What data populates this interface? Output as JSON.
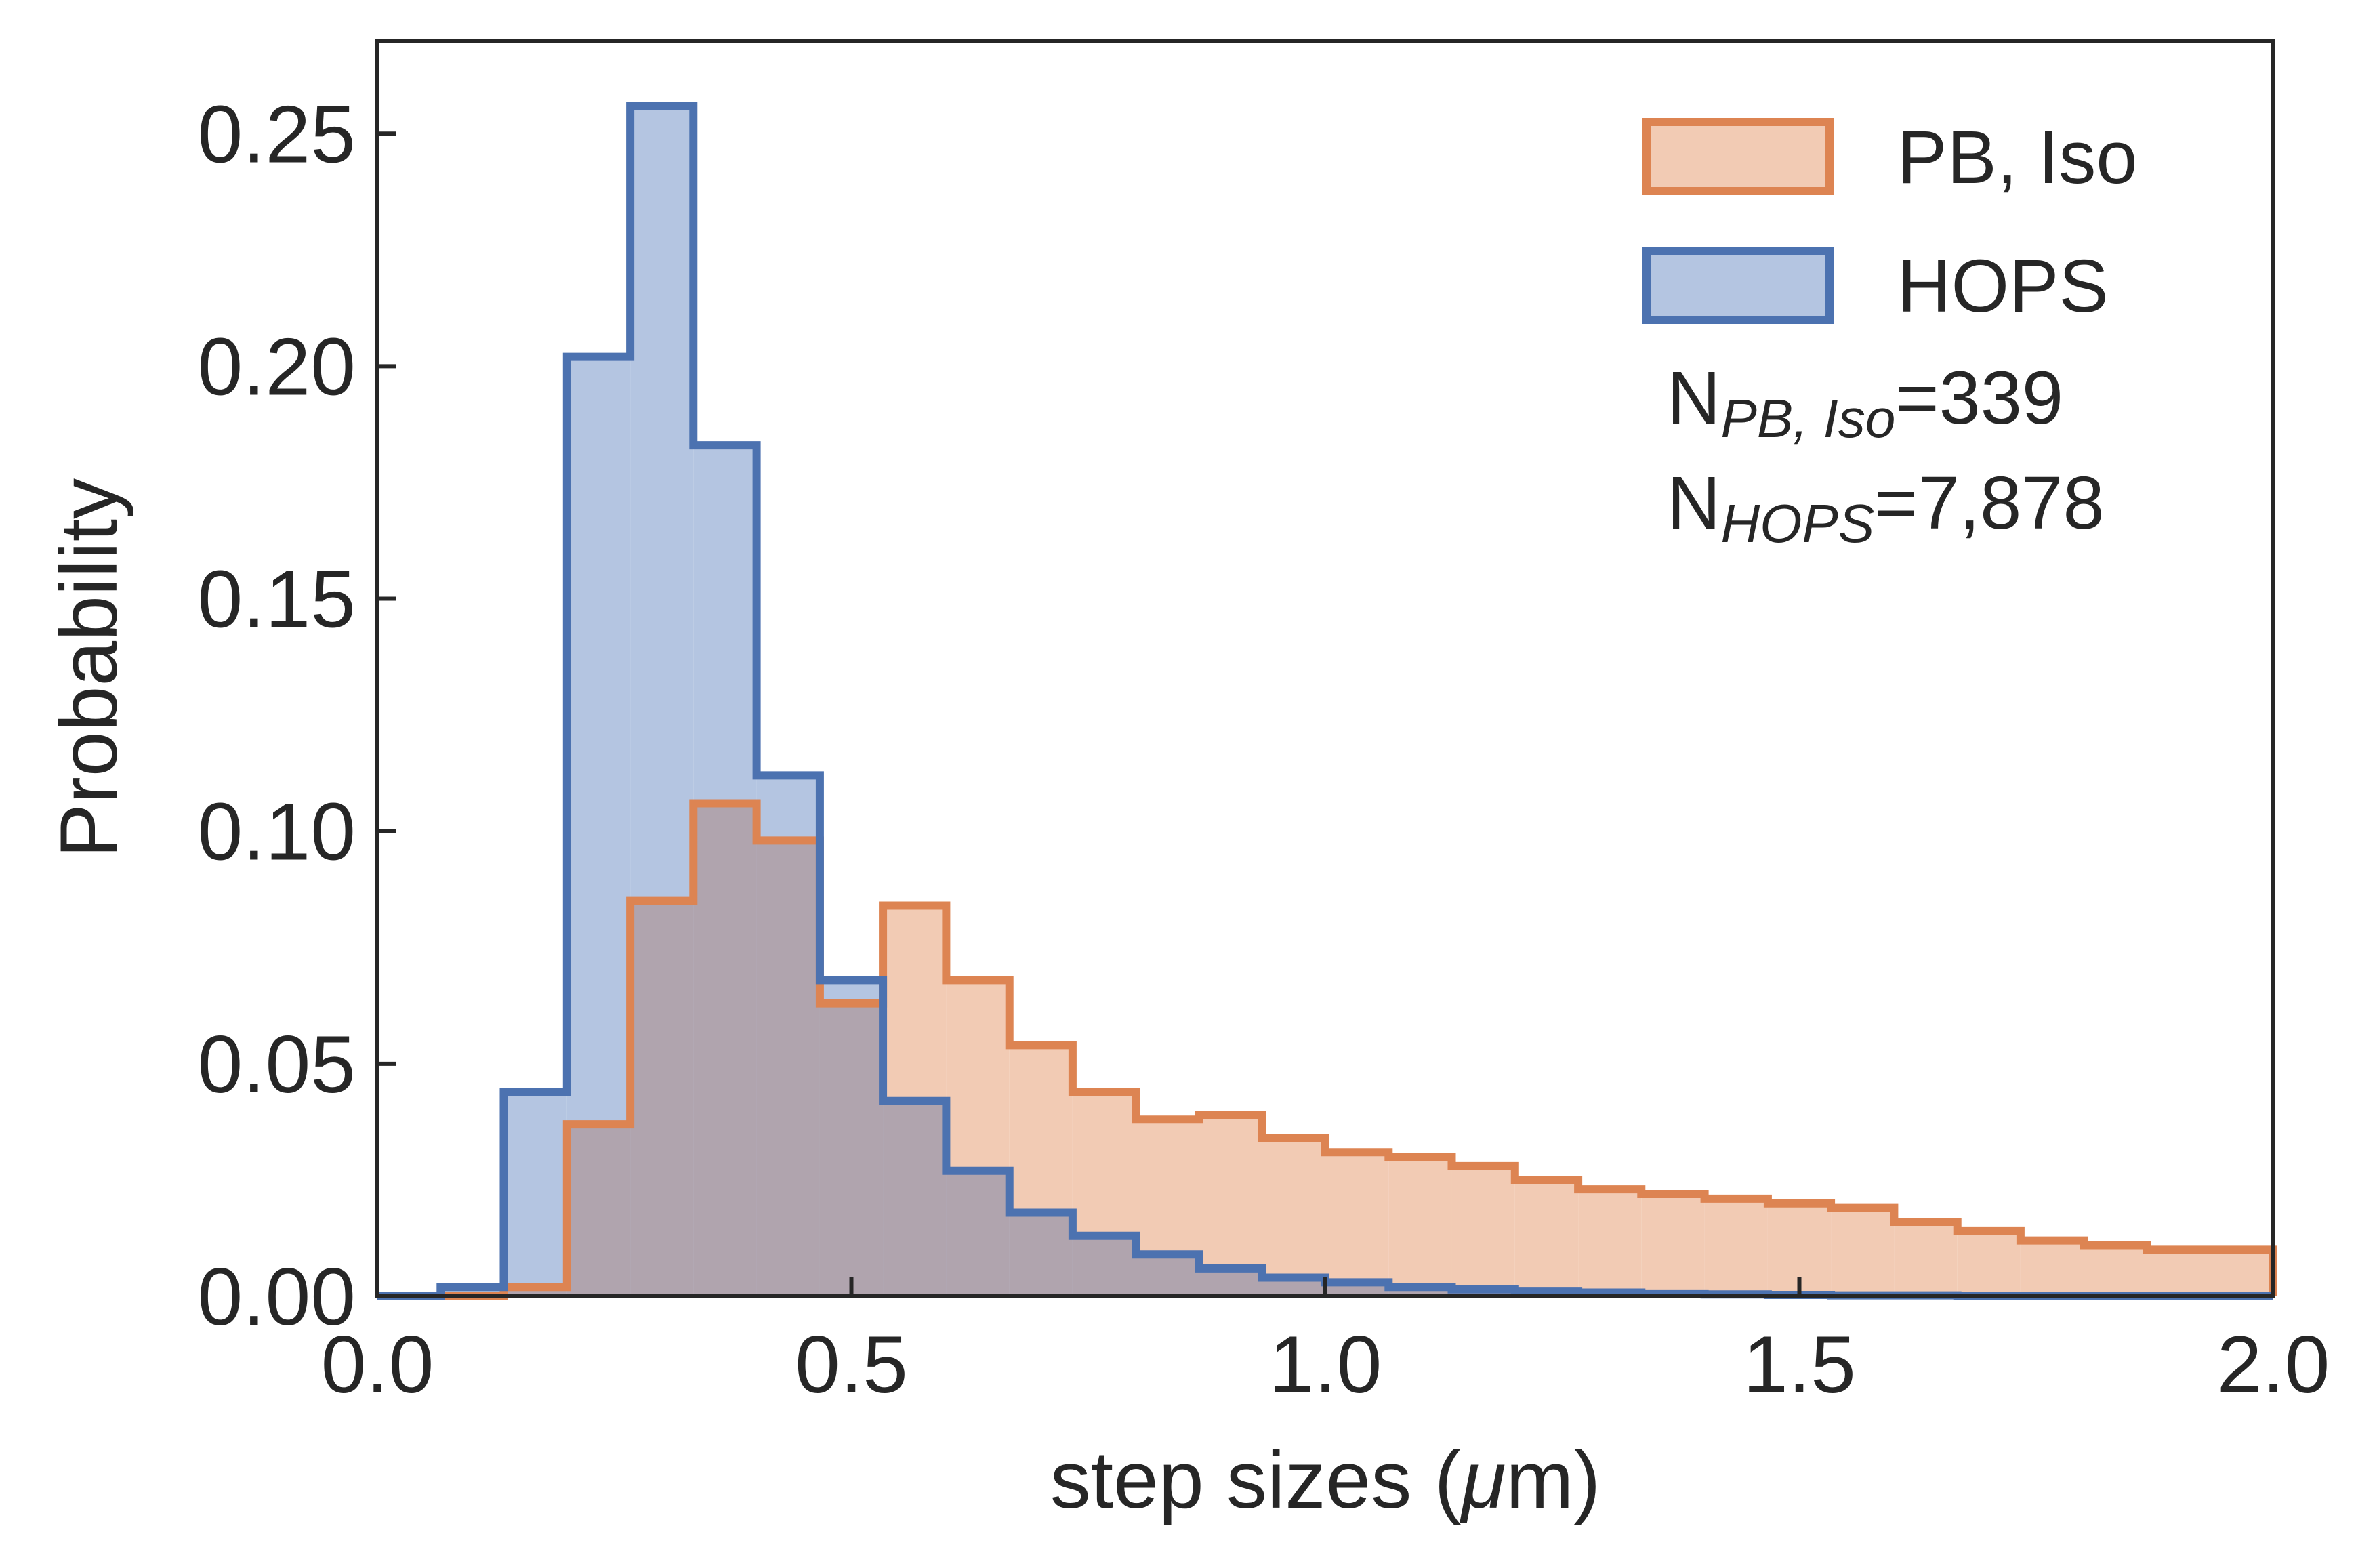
{
  "chart_data": {
    "type": "histogram",
    "xlabel_prefix": "step sizes (",
    "xlabel_mu": "μ",
    "xlabel_suffix": "m)",
    "ylabel": "Probability",
    "xlim": [
      0.0,
      2.0
    ],
    "ylim": [
      0.0,
      0.27
    ],
    "x_ticks": [
      "0.0",
      "0.5",
      "1.0",
      "1.5",
      "2.0"
    ],
    "y_ticks": [
      "0.00",
      "0.05",
      "0.10",
      "0.15",
      "0.20",
      "0.25"
    ],
    "grid": false,
    "legend_position": "top-right",
    "bin_edges": [
      0.0,
      0.0667,
      0.1333,
      0.2,
      0.2667,
      0.3333,
      0.4,
      0.4667,
      0.5333,
      0.6,
      0.6667,
      0.7333,
      0.8,
      0.8667,
      0.9333,
      1.0,
      1.0667,
      1.1333,
      1.2,
      1.2667,
      1.3333,
      1.4,
      1.4667,
      1.5333,
      1.6,
      1.6667,
      1.7333,
      1.8,
      1.8667,
      1.9333,
      2.0
    ],
    "series": [
      {
        "name": "PB, Iso",
        "line_color": "#dd8452",
        "fill_color": "#f2cbb4",
        "values": [
          0.0,
          0.0,
          0.002,
          0.037,
          0.085,
          0.106,
          0.098,
          0.063,
          0.084,
          0.068,
          0.054,
          0.044,
          0.038,
          0.039,
          0.034,
          0.031,
          0.03,
          0.028,
          0.025,
          0.023,
          0.022,
          0.021,
          0.02,
          0.019,
          0.016,
          0.014,
          0.012,
          0.011,
          0.01,
          0.01
        ]
      },
      {
        "name": "HOPS",
        "line_color": "#4c72b0",
        "fill_color": "#b4c5e1",
        "values": [
          0.0,
          0.002,
          0.044,
          0.202,
          0.256,
          0.183,
          0.112,
          0.068,
          0.042,
          0.027,
          0.018,
          0.013,
          0.009,
          0.006,
          0.004,
          0.003,
          0.002,
          0.0015,
          0.001,
          0.0008,
          0.0006,
          0.0004,
          0.0003,
          0.0002,
          0.0002,
          0.0001,
          0.0001,
          0.0001,
          0.0,
          0.0
        ]
      }
    ],
    "overlap_fill_color": "#b0a4ae",
    "annotations": [
      {
        "prefix": "N",
        "subscript": "PB, Iso",
        "suffix": "=339"
      },
      {
        "prefix": "N",
        "subscript": "HOPS",
        "suffix": "=7,878"
      }
    ]
  }
}
